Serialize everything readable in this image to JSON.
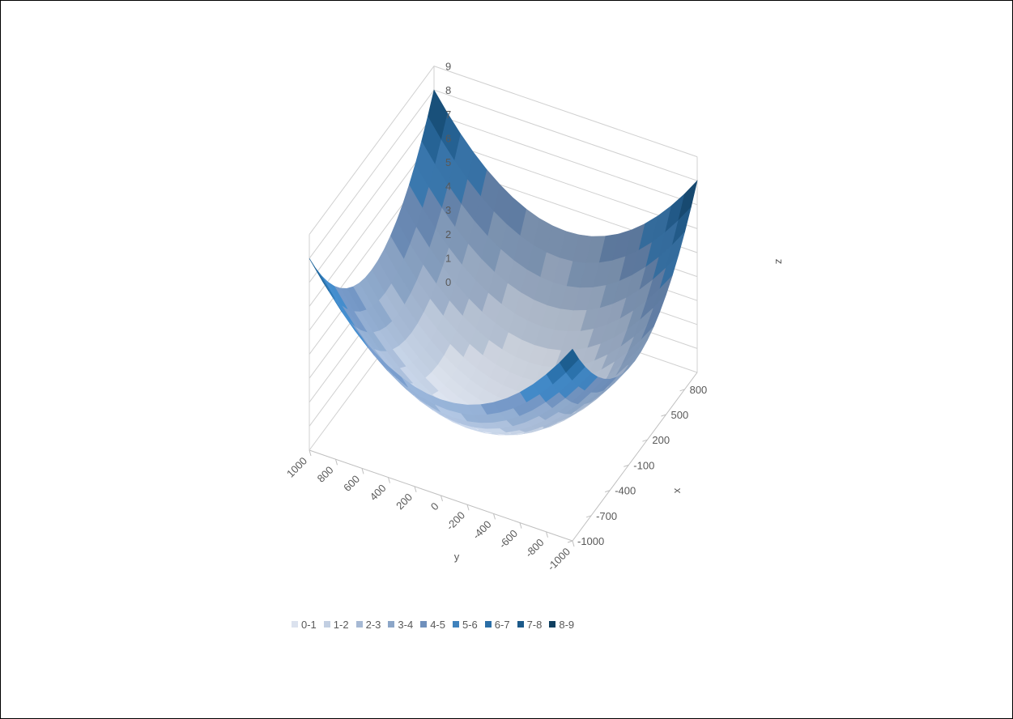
{
  "chart_data": {
    "type": "surface",
    "title": "",
    "axes": {
      "x": {
        "label": "x",
        "ticks": [
          "800",
          "500",
          "200",
          "-100",
          "-400",
          "-700",
          "-1000"
        ],
        "range": [
          -1000,
          1000
        ]
      },
      "y": {
        "label": "y",
        "ticks": [
          "1000",
          "800",
          "600",
          "400",
          "200",
          "0",
          "-200",
          "-400",
          "-600",
          "-800",
          "-1000"
        ],
        "range": [
          -1000,
          1000
        ]
      },
      "z": {
        "label": "z",
        "ticks": [
          "0",
          "1",
          "2",
          "3",
          "4",
          "5",
          "6",
          "7",
          "8",
          "9"
        ],
        "range": [
          0,
          9
        ]
      }
    },
    "surface": {
      "description_formula": "z = (x^2 + y^2) / 250000",
      "corner_values": [
        {
          "x": -1000,
          "y": -1000,
          "z": 8
        },
        {
          "x": -1000,
          "y": 1000,
          "z": 8
        },
        {
          "x": 1000,
          "y": -1000,
          "z": 8
        },
        {
          "x": 1000,
          "y": 1000,
          "z": 8
        }
      ],
      "minimum": {
        "x": 0,
        "y": 0,
        "z": 0
      }
    },
    "legend": {
      "position": "bottom",
      "entries": [
        {
          "label": "0-1",
          "color": "#dbe2ee"
        },
        {
          "label": "1-2",
          "color": "#c2cfe2"
        },
        {
          "label": "2-3",
          "color": "#a6b9d4"
        },
        {
          "label": "3-4",
          "color": "#8ca6c8"
        },
        {
          "label": "4-5",
          "color": "#6f90bc"
        },
        {
          "label": "5-6",
          "color": "#3f82bd"
        },
        {
          "label": "6-7",
          "color": "#2a6ea6"
        },
        {
          "label": "7-8",
          "color": "#1c5a8a"
        },
        {
          "label": "8-9",
          "color": "#0f3f60"
        }
      ]
    },
    "grid": true
  }
}
